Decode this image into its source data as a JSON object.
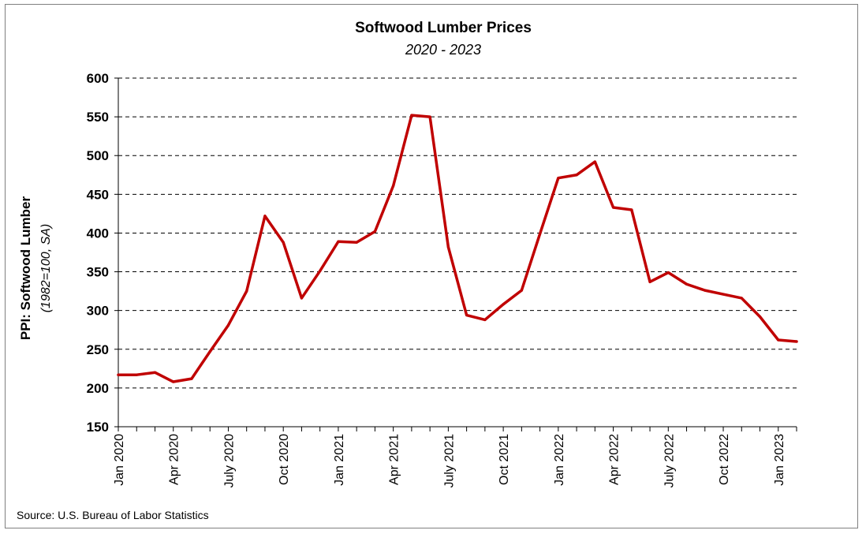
{
  "chart_data": {
    "type": "line",
    "title": "Softwood Lumber Prices",
    "subtitle": "2020 - 2023",
    "ylabel": "PPI: Softwood Lumber",
    "ylabel_note": "(1982=100, SA)",
    "xlabel": "",
    "source": "Source: U.S. Bureau of Labor Statistics",
    "ylim": [
      150,
      600
    ],
    "y_ticks": [
      150,
      200,
      250,
      300,
      350,
      400,
      450,
      500,
      550,
      600
    ],
    "grid": "horizontal-dashed",
    "legend": "none",
    "line_color": "#C00000",
    "x": [
      "2020-01",
      "2020-02",
      "2020-03",
      "2020-04",
      "2020-05",
      "2020-06",
      "2020-07",
      "2020-08",
      "2020-09",
      "2020-10",
      "2020-11",
      "2020-12",
      "2021-01",
      "2021-02",
      "2021-03",
      "2021-04",
      "2021-05",
      "2021-06",
      "2021-07",
      "2021-08",
      "2021-09",
      "2021-10",
      "2021-11",
      "2021-12",
      "2022-01",
      "2022-02",
      "2022-03",
      "2022-04",
      "2022-05",
      "2022-06",
      "2022-07",
      "2022-08",
      "2022-09",
      "2022-10",
      "2022-11",
      "2022-12",
      "2023-01",
      "2023-02"
    ],
    "x_tick_labels": [
      {
        "month": "2020-01",
        "label": "Jan 2020"
      },
      {
        "month": "2020-04",
        "label": "Apr 2020"
      },
      {
        "month": "2020-07",
        "label": "July 2020"
      },
      {
        "month": "2020-10",
        "label": "Oct 2020"
      },
      {
        "month": "2021-01",
        "label": "Jan 2021"
      },
      {
        "month": "2021-04",
        "label": "Apr 2021"
      },
      {
        "month": "2021-07",
        "label": "July 2021"
      },
      {
        "month": "2021-10",
        "label": "Oct 2021"
      },
      {
        "month": "2022-01",
        "label": "Jan 2022"
      },
      {
        "month": "2022-04",
        "label": "Apr 2022"
      },
      {
        "month": "2022-07",
        "label": "July 2022"
      },
      {
        "month": "2022-10",
        "label": "Oct 2022"
      },
      {
        "month": "2023-01",
        "label": "Jan 2023"
      }
    ],
    "series": [
      {
        "values": [
          217,
          217,
          220,
          208,
          212,
          247,
          281,
          325,
          422,
          388,
          316,
          351,
          389,
          388,
          402,
          461,
          552,
          550,
          382,
          294,
          288,
          308,
          326,
          399,
          471,
          475,
          492,
          433,
          430,
          337,
          349,
          334,
          326,
          321,
          316,
          292,
          262,
          260
        ]
      }
    ]
  }
}
